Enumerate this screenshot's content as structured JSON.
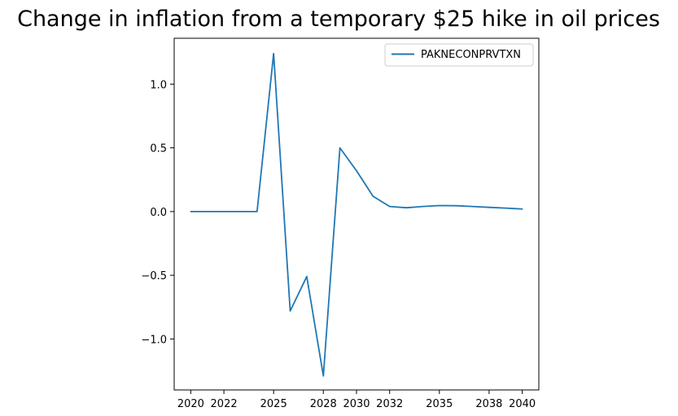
{
  "chart_data": {
    "type": "line",
    "title": "Change in inflation from a temporary $25 hike in oil prices",
    "xlabel": "",
    "ylabel": "",
    "xlim": [
      2019.0,
      2041.0
    ],
    "ylim": [
      -1.4,
      1.36
    ],
    "x_ticks": [
      2020,
      2022,
      2025,
      2028,
      2030,
      2032,
      2035,
      2038,
      2040
    ],
    "x_tick_labels": [
      "2020",
      "2022",
      "2025",
      "2028",
      "2030",
      "2032",
      "2035",
      "2038",
      "2040"
    ],
    "y_ticks": [
      -1.0,
      -0.5,
      0.0,
      0.5,
      1.0
    ],
    "y_tick_labels": [
      "−1.0",
      "−0.5",
      "0.0",
      "0.5",
      "1.0"
    ],
    "grid": false,
    "legend_position": "upper right",
    "series": [
      {
        "name": "PAKNECONPRVTXN",
        "color": "#1f77b4",
        "x": [
          2020,
          2021,
          2022,
          2023,
          2024,
          2025,
          2026,
          2027,
          2028,
          2029,
          2030,
          2031,
          2032,
          2033,
          2034,
          2035,
          2036,
          2037,
          2038,
          2039,
          2040
        ],
        "y": [
          0.0,
          0.0,
          0.0,
          0.0,
          0.0,
          1.24,
          -0.78,
          -0.51,
          -1.29,
          0.5,
          0.32,
          0.12,
          0.04,
          0.03,
          0.04,
          0.047,
          0.046,
          0.04,
          0.033,
          0.027,
          0.02
        ]
      }
    ]
  }
}
